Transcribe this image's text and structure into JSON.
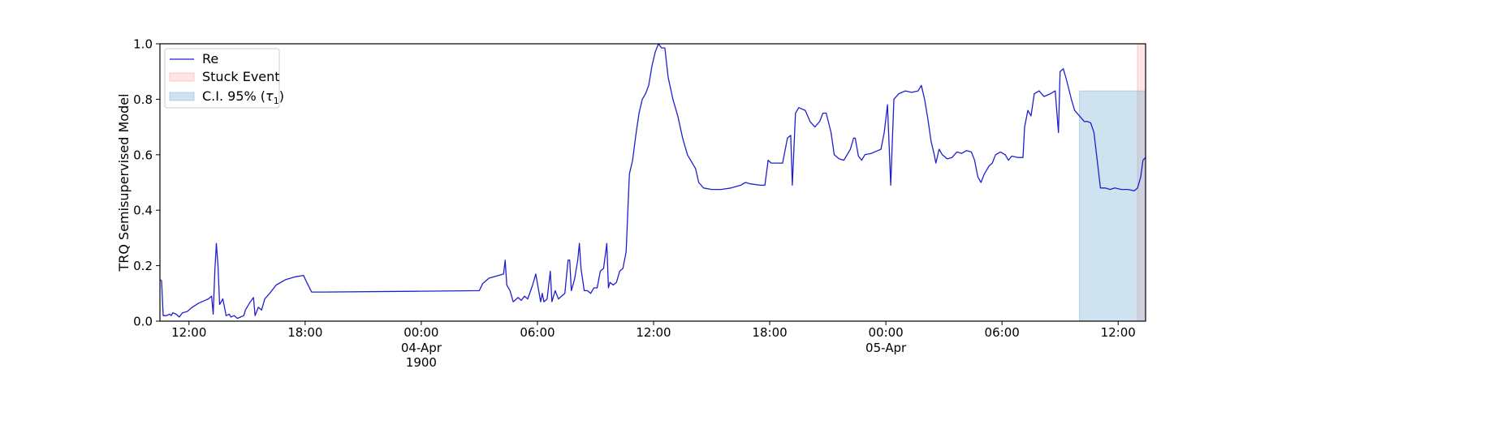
{
  "chart_data": {
    "type": "line",
    "title": "",
    "xlabel": "",
    "ylabel": "TRQ Semisupervised Model",
    "xlim": [
      "1900-04-03 10:30",
      "1900-04-05 13:25"
    ],
    "ylim": [
      0,
      1.0
    ],
    "grid": false,
    "legend_position": "upper-left",
    "y_ticks": [
      {
        "value": 0.0,
        "label": "0.0"
      },
      {
        "value": 0.2,
        "label": "0.2"
      },
      {
        "value": 0.4,
        "label": "0.4"
      },
      {
        "value": 0.6,
        "label": "0.6"
      },
      {
        "value": 0.8,
        "label": "0.8"
      },
      {
        "value": 1.0,
        "label": "1.0"
      }
    ],
    "x_ticks": [
      {
        "value": "1900-04-03 12:00",
        "label": "12:00"
      },
      {
        "value": "1900-04-03 18:00",
        "label": "18:00"
      },
      {
        "value": "1900-04-04 00:00",
        "label": "00:00",
        "sublabel": "04-Apr",
        "sublabel2": "1900"
      },
      {
        "value": "1900-04-04 06:00",
        "label": "06:00"
      },
      {
        "value": "1900-04-04 12:00",
        "label": "12:00"
      },
      {
        "value": "1900-04-04 18:00",
        "label": "18:00"
      },
      {
        "value": "1900-04-05 00:00",
        "label": "00:00",
        "sublabel": "05-Apr"
      },
      {
        "value": "1900-04-05 06:00",
        "label": "06:00"
      },
      {
        "value": "1900-04-05 12:00",
        "label": "12:00"
      }
    ],
    "series": [
      {
        "name": "Re",
        "color": "#1f1fcf",
        "points": [
          [
            "1900-04-03 10:30",
            0.15
          ],
          [
            "1900-04-03 10:35",
            0.145
          ],
          [
            "1900-04-03 10:40",
            0.02
          ],
          [
            "1900-04-03 10:50",
            0.02
          ],
          [
            "1900-04-03 11:00",
            0.025
          ],
          [
            "1900-04-03 11:05",
            0.02
          ],
          [
            "1900-04-03 11:10",
            0.03
          ],
          [
            "1900-04-03 11:20",
            0.025
          ],
          [
            "1900-04-03 11:30",
            0.015
          ],
          [
            "1900-04-03 11:40",
            0.03
          ],
          [
            "1900-04-03 11:55",
            0.035
          ],
          [
            "1900-04-03 12:10",
            0.05
          ],
          [
            "1900-04-03 12:30",
            0.065
          ],
          [
            "1900-04-03 13:00",
            0.08
          ],
          [
            "1900-04-03 13:10",
            0.09
          ],
          [
            "1900-04-03 13:15",
            0.025
          ],
          [
            "1900-04-03 13:20",
            0.18
          ],
          [
            "1900-04-03 13:25",
            0.28
          ],
          [
            "1900-04-03 13:30",
            0.2
          ],
          [
            "1900-04-03 13:35",
            0.06
          ],
          [
            "1900-04-03 13:45",
            0.08
          ],
          [
            "1900-04-03 13:55",
            0.02
          ],
          [
            "1900-04-03 14:05",
            0.025
          ],
          [
            "1900-04-03 14:10",
            0.015
          ],
          [
            "1900-04-03 14:20",
            0.02
          ],
          [
            "1900-04-03 14:30",
            0.01
          ],
          [
            "1900-04-03 14:40",
            0.015
          ],
          [
            "1900-04-03 14:50",
            0.02
          ],
          [
            "1900-04-03 14:55",
            0.04
          ],
          [
            "1900-04-03 15:10",
            0.07
          ],
          [
            "1900-04-03 15:20",
            0.085
          ],
          [
            "1900-04-03 15:25",
            0.02
          ],
          [
            "1900-04-03 15:35",
            0.05
          ],
          [
            "1900-04-03 15:45",
            0.04
          ],
          [
            "1900-04-03 15:55",
            0.08
          ],
          [
            "1900-04-03 16:10",
            0.1
          ],
          [
            "1900-04-03 16:30",
            0.13
          ],
          [
            "1900-04-03 17:00",
            0.15
          ],
          [
            "1900-04-03 17:30",
            0.16
          ],
          [
            "1900-04-03 17:55",
            0.165
          ],
          [
            "1900-04-03 18:05",
            0.14
          ],
          [
            "1900-04-03 18:20",
            0.105
          ],
          [
            "1900-04-03 19:00",
            0.105
          ],
          [
            "1900-04-04 00:00",
            0.108
          ],
          [
            "1900-04-04 03:00",
            0.11
          ],
          [
            "1900-04-04 03:10",
            0.135
          ],
          [
            "1900-04-04 03:30",
            0.155
          ],
          [
            "1900-04-04 04:00",
            0.165
          ],
          [
            "1900-04-04 04:15",
            0.17
          ],
          [
            "1900-04-04 04:20",
            0.22
          ],
          [
            "1900-04-04 04:25",
            0.13
          ],
          [
            "1900-04-04 04:35",
            0.11
          ],
          [
            "1900-04-04 04:45",
            0.07
          ],
          [
            "1900-04-04 05:00",
            0.085
          ],
          [
            "1900-04-04 05:10",
            0.075
          ],
          [
            "1900-04-04 05:20",
            0.09
          ],
          [
            "1900-04-04 05:30",
            0.08
          ],
          [
            "1900-04-04 05:45",
            0.13
          ],
          [
            "1900-04-04 05:55",
            0.17
          ],
          [
            "1900-04-04 06:10",
            0.07
          ],
          [
            "1900-04-04 06:15",
            0.1
          ],
          [
            "1900-04-04 06:20",
            0.07
          ],
          [
            "1900-04-04 06:30",
            0.08
          ],
          [
            "1900-04-04 06:40",
            0.18
          ],
          [
            "1900-04-04 06:45",
            0.07
          ],
          [
            "1900-04-04 06:55",
            0.11
          ],
          [
            "1900-04-04 07:05",
            0.08
          ],
          [
            "1900-04-04 07:15",
            0.09
          ],
          [
            "1900-04-04 07:25",
            0.1
          ],
          [
            "1900-04-04 07:35",
            0.22
          ],
          [
            "1900-04-04 07:40",
            0.22
          ],
          [
            "1900-04-04 07:45",
            0.11
          ],
          [
            "1900-04-04 07:55",
            0.15
          ],
          [
            "1900-04-04 08:05",
            0.22
          ],
          [
            "1900-04-04 08:10",
            0.28
          ],
          [
            "1900-04-04 08:15",
            0.19
          ],
          [
            "1900-04-04 08:25",
            0.11
          ],
          [
            "1900-04-04 08:35",
            0.11
          ],
          [
            "1900-04-04 08:45",
            0.1
          ],
          [
            "1900-04-04 08:55",
            0.12
          ],
          [
            "1900-04-04 09:05",
            0.12
          ],
          [
            "1900-04-04 09:15",
            0.18
          ],
          [
            "1900-04-04 09:25",
            0.19
          ],
          [
            "1900-04-04 09:35",
            0.28
          ],
          [
            "1900-04-04 09:40",
            0.12
          ],
          [
            "1900-04-04 09:45",
            0.14
          ],
          [
            "1900-04-04 09:55",
            0.13
          ],
          [
            "1900-04-04 10:05",
            0.14
          ],
          [
            "1900-04-04 10:15",
            0.18
          ],
          [
            "1900-04-04 10:25",
            0.19
          ],
          [
            "1900-04-04 10:35",
            0.25
          ],
          [
            "1900-04-04 10:45",
            0.53
          ],
          [
            "1900-04-04 10:55",
            0.58
          ],
          [
            "1900-04-04 11:05",
            0.67
          ],
          [
            "1900-04-04 11:15",
            0.75
          ],
          [
            "1900-04-04 11:25",
            0.8
          ],
          [
            "1900-04-04 11:35",
            0.82
          ],
          [
            "1900-04-04 11:45",
            0.85
          ],
          [
            "1900-04-04 11:55",
            0.92
          ],
          [
            "1900-04-04 12:05",
            0.97
          ],
          [
            "1900-04-04 12:15",
            1.0
          ],
          [
            "1900-04-04 12:25",
            0.985
          ],
          [
            "1900-04-04 12:35",
            0.985
          ],
          [
            "1900-04-04 12:45",
            0.88
          ],
          [
            "1900-04-04 13:00",
            0.8
          ],
          [
            "1900-04-04 13:15",
            0.74
          ],
          [
            "1900-04-04 13:30",
            0.66
          ],
          [
            "1900-04-04 13:45",
            0.6
          ],
          [
            "1900-04-04 14:00",
            0.57
          ],
          [
            "1900-04-04 14:10",
            0.55
          ],
          [
            "1900-04-04 14:20",
            0.5
          ],
          [
            "1900-04-04 14:35",
            0.48
          ],
          [
            "1900-04-04 15:00",
            0.475
          ],
          [
            "1900-04-04 15:30",
            0.475
          ],
          [
            "1900-04-04 16:00",
            0.48
          ],
          [
            "1900-04-04 16:30",
            0.49
          ],
          [
            "1900-04-04 16:45",
            0.5
          ],
          [
            "1900-04-04 17:00",
            0.495
          ],
          [
            "1900-04-04 17:30",
            0.49
          ],
          [
            "1900-04-04 17:45",
            0.49
          ],
          [
            "1900-04-04 17:55",
            0.58
          ],
          [
            "1900-04-04 18:05",
            0.57
          ],
          [
            "1900-04-04 18:20",
            0.57
          ],
          [
            "1900-04-04 18:40",
            0.57
          ],
          [
            "1900-04-04 18:55",
            0.66
          ],
          [
            "1900-04-04 19:05",
            0.67
          ],
          [
            "1900-04-04 19:10",
            0.49
          ],
          [
            "1900-04-04 19:20",
            0.75
          ],
          [
            "1900-04-04 19:30",
            0.77
          ],
          [
            "1900-04-04 19:50",
            0.76
          ],
          [
            "1900-04-04 20:05",
            0.72
          ],
          [
            "1900-04-04 20:20",
            0.7
          ],
          [
            "1900-04-04 20:35",
            0.72
          ],
          [
            "1900-04-04 20:45",
            0.75
          ],
          [
            "1900-04-04 20:55",
            0.75
          ],
          [
            "1900-04-04 21:10",
            0.68
          ],
          [
            "1900-04-04 21:20",
            0.6
          ],
          [
            "1900-04-04 21:35",
            0.585
          ],
          [
            "1900-04-04 21:50",
            0.58
          ],
          [
            "1900-04-04 22:00",
            0.6
          ],
          [
            "1900-04-04 22:10",
            0.62
          ],
          [
            "1900-04-04 22:20",
            0.66
          ],
          [
            "1900-04-04 22:25",
            0.66
          ],
          [
            "1900-04-04 22:35",
            0.595
          ],
          [
            "1900-04-04 22:45",
            0.58
          ],
          [
            "1900-04-04 22:55",
            0.6
          ],
          [
            "1900-04-04 23:15",
            0.605
          ],
          [
            "1900-04-04 23:35",
            0.615
          ],
          [
            "1900-04-04 23:45",
            0.62
          ],
          [
            "1900-04-04 23:55",
            0.68
          ],
          [
            "1900-04-05 00:05",
            0.78
          ],
          [
            "1900-04-05 00:15",
            0.49
          ],
          [
            "1900-04-05 00:25",
            0.8
          ],
          [
            "1900-04-05 00:40",
            0.82
          ],
          [
            "1900-04-05 01:00",
            0.83
          ],
          [
            "1900-04-05 01:20",
            0.825
          ],
          [
            "1900-04-05 01:40",
            0.83
          ],
          [
            "1900-04-05 01:50",
            0.85
          ],
          [
            "1900-04-05 02:00",
            0.8
          ],
          [
            "1900-04-05 02:10",
            0.73
          ],
          [
            "1900-04-05 02:20",
            0.65
          ],
          [
            "1900-04-05 02:30",
            0.6
          ],
          [
            "1900-04-05 02:35",
            0.57
          ],
          [
            "1900-04-05 02:45",
            0.62
          ],
          [
            "1900-04-05 02:55",
            0.6
          ],
          [
            "1900-04-05 03:10",
            0.585
          ],
          [
            "1900-04-05 03:25",
            0.59
          ],
          [
            "1900-04-05 03:40",
            0.61
          ],
          [
            "1900-04-05 03:55",
            0.605
          ],
          [
            "1900-04-05 04:10",
            0.615
          ],
          [
            "1900-04-05 04:25",
            0.61
          ],
          [
            "1900-04-05 04:35",
            0.58
          ],
          [
            "1900-04-05 04:45",
            0.52
          ],
          [
            "1900-04-05 04:55",
            0.5
          ],
          [
            "1900-04-05 05:05",
            0.53
          ],
          [
            "1900-04-05 05:20",
            0.56
          ],
          [
            "1900-04-05 05:30",
            0.57
          ],
          [
            "1900-04-05 05:40",
            0.6
          ],
          [
            "1900-04-05 05:55",
            0.61
          ],
          [
            "1900-04-05 06:10",
            0.6
          ],
          [
            "1900-04-05 06:20",
            0.58
          ],
          [
            "1900-04-05 06:30",
            0.595
          ],
          [
            "1900-04-05 06:50",
            0.59
          ],
          [
            "1900-04-05 07:05",
            0.59
          ],
          [
            "1900-04-05 07:10",
            0.7
          ],
          [
            "1900-04-05 07:20",
            0.76
          ],
          [
            "1900-04-05 07:30",
            0.74
          ],
          [
            "1900-04-05 07:40",
            0.82
          ],
          [
            "1900-04-05 07:55",
            0.83
          ],
          [
            "1900-04-05 08:10",
            0.81
          ],
          [
            "1900-04-05 08:30",
            0.82
          ],
          [
            "1900-04-05 08:45",
            0.83
          ],
          [
            "1900-04-05 08:55",
            0.68
          ],
          [
            "1900-04-05 09:00",
            0.9
          ],
          [
            "1900-04-05 09:10",
            0.91
          ],
          [
            "1900-04-05 09:20",
            0.87
          ],
          [
            "1900-04-05 09:35",
            0.8
          ],
          [
            "1900-04-05 09:45",
            0.76
          ],
          [
            "1900-04-05 10:00",
            0.74
          ],
          [
            "1900-04-05 10:15",
            0.72
          ],
          [
            "1900-04-05 10:25",
            0.72
          ],
          [
            "1900-04-05 10:35",
            0.715
          ],
          [
            "1900-04-05 10:45",
            0.68
          ],
          [
            "1900-04-05 10:55",
            0.58
          ],
          [
            "1900-04-05 11:05",
            0.48
          ],
          [
            "1900-04-05 11:20",
            0.48
          ],
          [
            "1900-04-05 11:35",
            0.475
          ],
          [
            "1900-04-05 11:50",
            0.48
          ],
          [
            "1900-04-05 12:10",
            0.475
          ],
          [
            "1900-04-05 12:30",
            0.475
          ],
          [
            "1900-04-05 12:50",
            0.47
          ],
          [
            "1900-04-05 13:00",
            0.48
          ],
          [
            "1900-04-05 13:10",
            0.52
          ],
          [
            "1900-04-05 13:17",
            0.58
          ],
          [
            "1900-04-05 13:25",
            0.59
          ]
        ]
      }
    ],
    "bands": [
      {
        "name": "Stuck Event",
        "color": "#ff9999",
        "opacity": 0.25,
        "x_start": "1900-04-05 13:00",
        "x_end": "1900-04-05 13:25",
        "y_start": 0,
        "y_end": 1.0
      },
      {
        "name": "C.I. 95% (τ1)",
        "color": "#7fb2d6",
        "opacity": 0.38,
        "x_start": "1900-04-05 10:00",
        "x_end": "1900-04-05 13:25",
        "y_start": 0,
        "y_end": 0.83
      }
    ],
    "legend": [
      {
        "label": "Re",
        "kind": "line",
        "color": "#1f1fcf"
      },
      {
        "label": "Stuck Event",
        "kind": "patch",
        "color": "#ff9999",
        "opacity": 0.25
      },
      {
        "label": "C.I. 95% (",
        "tau_symbol": "τ",
        "tau_sub": "1",
        "label_end": ")",
        "kind": "patch",
        "color": "#7fb2d6",
        "opacity": 0.38
      }
    ]
  }
}
